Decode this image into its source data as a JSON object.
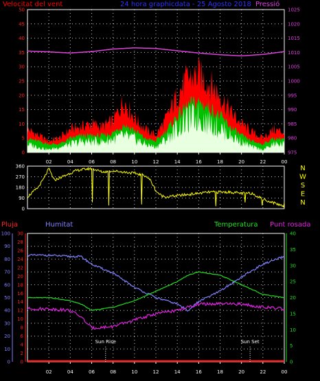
{
  "colors": {
    "background": "#000000",
    "frame": "#ffffff",
    "grid": "#ffffff",
    "wind_gust": "#ff0000",
    "wind_avg": "#00c000",
    "wind_min": "#e8ffe0",
    "pressure": "#e040e0",
    "direction": "#ffff00",
    "rain": "#ff2020",
    "humidity": "#8080ff",
    "temperature": "#20e020",
    "dewpoint": "#e020e0",
    "title": "#3030ff"
  },
  "header": {
    "wind_label": "Velocitat del vent",
    "title": "24 hora graphicdata - 25 Agosto 2018",
    "pressure_label": "Pressió"
  },
  "lower_labels": {
    "rain": "Pluja",
    "humidity": "Humitat",
    "temperature": "Temperatura",
    "dewpoint": "Punt rosada"
  },
  "annotations": {
    "sunrise": "Sun Rise",
    "sunset": "Sun Set"
  },
  "chart_data": [
    {
      "type": "line",
      "name": "wind-pressure",
      "xlabel": "",
      "x_ticks": [
        "02",
        "04",
        "06",
        "08",
        "10",
        "12",
        "14",
        "16",
        "18",
        "20",
        "22",
        "00"
      ],
      "xlim": [
        0,
        24
      ],
      "y_left": {
        "label": "Velocitat del vent",
        "lim": [
          0,
          50
        ],
        "ticks": [
          0,
          5,
          10,
          15,
          20,
          25,
          30,
          35,
          40,
          45,
          50
        ]
      },
      "y_right": {
        "label": "Pressió",
        "lim": [
          975,
          1025
        ],
        "ticks": [
          975,
          980,
          985,
          990,
          995,
          1000,
          1005,
          1010,
          1015,
          1020,
          1025
        ]
      },
      "grid": true,
      "series": [
        {
          "name": "gust",
          "x": [
            0,
            1,
            2,
            3,
            4,
            5,
            6,
            7,
            8,
            9,
            10,
            11,
            12,
            13,
            14,
            15,
            16,
            17,
            18,
            19,
            20,
            21,
            22,
            23,
            24
          ],
          "values": [
            8,
            6,
            4,
            5,
            8,
            9,
            10,
            9,
            11,
            18,
            12,
            8,
            6,
            12,
            20,
            26,
            27,
            24,
            20,
            14,
            10,
            7,
            5,
            8,
            7
          ]
        },
        {
          "name": "average",
          "x": [
            0,
            1,
            2,
            3,
            4,
            5,
            6,
            7,
            8,
            9,
            10,
            11,
            12,
            13,
            14,
            15,
            16,
            17,
            18,
            19,
            20,
            21,
            22,
            23,
            24
          ],
          "values": [
            5,
            4,
            3,
            3,
            5,
            6,
            6,
            6,
            7,
            10,
            8,
            5,
            4,
            8,
            13,
            17,
            18,
            16,
            13,
            9,
            6,
            4,
            3,
            5,
            5
          ]
        },
        {
          "name": "minimum",
          "x": [
            0,
            1,
            2,
            3,
            4,
            5,
            6,
            7,
            8,
            9,
            10,
            11,
            12,
            13,
            14,
            15,
            16,
            17,
            18,
            19,
            20,
            21,
            22,
            23,
            24
          ],
          "values": [
            3,
            2,
            1,
            2,
            3,
            4,
            4,
            4,
            5,
            6,
            5,
            3,
            2,
            5,
            9,
            12,
            13,
            11,
            9,
            6,
            4,
            2,
            1,
            3,
            3
          ]
        },
        {
          "name": "pressure",
          "x": [
            0,
            2,
            4,
            6,
            8,
            10,
            12,
            14,
            16,
            18,
            20,
            22,
            24
          ],
          "values": [
            1010.5,
            1010.2,
            1009.8,
            1010.3,
            1011.2,
            1011.6,
            1011.4,
            1010.6,
            1009.8,
            1009.2,
            1008.8,
            1009.3,
            1010.3
          ]
        }
      ]
    },
    {
      "type": "line",
      "name": "wind-direction",
      "xlim": [
        0,
        24
      ],
      "y_left": {
        "lim": [
          0,
          360
        ],
        "ticks": [
          0,
          90,
          180,
          270,
          360
        ]
      },
      "y_right_labels": [
        "N",
        "W",
        "S",
        "E",
        "N"
      ],
      "grid": true,
      "series": [
        {
          "name": "direction",
          "x": [
            0,
            0.5,
            1,
            1.5,
            2,
            2.5,
            3,
            3.5,
            4,
            4.5,
            5,
            6,
            7,
            8,
            9,
            10,
            11,
            11.5,
            12,
            12.5,
            13,
            14,
            15,
            16,
            17,
            18,
            19,
            20,
            21,
            22,
            23,
            24
          ],
          "values": [
            100,
            140,
            180,
            250,
            340,
            240,
            260,
            280,
            300,
            320,
            330,
            340,
            310,
            320,
            310,
            300,
            280,
            240,
            150,
            110,
            100,
            110,
            120,
            130,
            140,
            140,
            140,
            130,
            130,
            80,
            50,
            20
          ]
        }
      ]
    },
    {
      "type": "line",
      "name": "temperature-humidity",
      "xlim": [
        0,
        24
      ],
      "y_left_rain": {
        "label": "Pluja",
        "lim": [
          0,
          30
        ],
        "ticks": [
          0,
          2,
          4,
          6,
          8,
          10,
          12,
          14,
          16,
          18,
          20,
          22,
          24,
          26,
          28,
          30
        ]
      },
      "y_left_humidity": {
        "label": "Humitat",
        "lim": [
          0,
          100
        ],
        "ticks": [
          0,
          10,
          20,
          30,
          40,
          50,
          60,
          70,
          80,
          90,
          100
        ]
      },
      "y_right": {
        "label": "Temperatura",
        "lim": [
          0,
          40
        ],
        "ticks": [
          0,
          5,
          10,
          15,
          20,
          25,
          30,
          35,
          40
        ]
      },
      "grid": true,
      "series": [
        {
          "name": "rain",
          "x": [
            0,
            24
          ],
          "values": [
            0,
            0
          ]
        },
        {
          "name": "humidity",
          "x": [
            0,
            2,
            4,
            5,
            6,
            8,
            10,
            12,
            14,
            15,
            16,
            18,
            20,
            22,
            24
          ],
          "values": [
            83,
            83,
            82,
            82,
            76,
            69,
            58,
            50,
            45,
            40,
            47,
            55,
            66,
            76,
            82
          ]
        },
        {
          "name": "temperature",
          "x": [
            0,
            2,
            4,
            5,
            6,
            8,
            10,
            12,
            14,
            15,
            16,
            18,
            20,
            22,
            24
          ],
          "values": [
            20,
            20,
            19,
            18,
            16,
            17,
            19,
            22,
            25,
            27,
            28,
            27,
            24,
            21,
            20
          ]
        },
        {
          "name": "dewpoint",
          "x": [
            0,
            2,
            4,
            5,
            6,
            8,
            10,
            12,
            14,
            15,
            16,
            18,
            20,
            22,
            24
          ],
          "values": [
            16.5,
            16.5,
            16,
            14,
            10.5,
            11,
            13,
            15,
            16,
            17,
            18,
            18,
            18,
            17,
            16.5
          ]
        }
      ],
      "markers": {
        "sunrise_hour": 7.3,
        "sunset_hour": 20.8
      }
    }
  ]
}
